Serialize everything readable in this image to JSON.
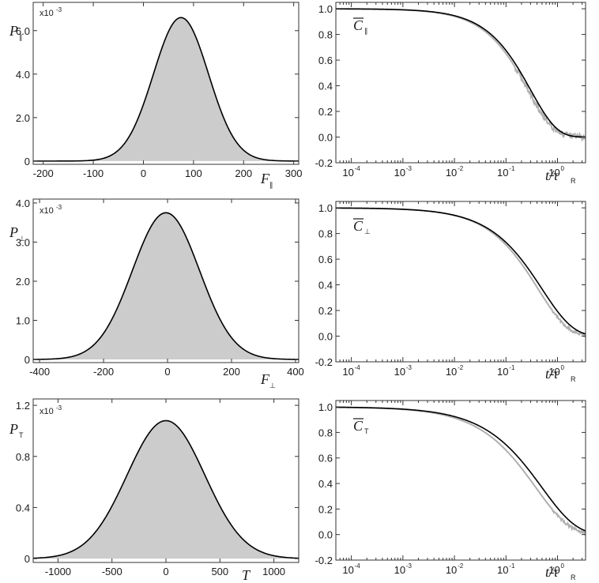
{
  "colors": {
    "histogram_fill": "#cccccc",
    "fit_line": "#000000",
    "data_line": "#b0b0b0",
    "frame": "#333333"
  },
  "chart_data": [
    {
      "id": "p_par",
      "type": "area",
      "ylabel": {
        "main": "P",
        "sub": "∥"
      },
      "xlabel": {
        "main": "F",
        "sub": "∥"
      },
      "multiplier": {
        "base": "x10",
        "exp": "-3"
      },
      "xlim": [
        -220,
        310
      ],
      "ylim": [
        -0.15,
        7.3
      ],
      "xticks": [
        -200,
        -100,
        0,
        100,
        200,
        300
      ],
      "yticks": [
        0,
        2.0,
        4.0,
        6.0
      ],
      "ytick_labels": [
        "0",
        "2.0",
        "4.0",
        "6.0"
      ],
      "distribution": {
        "mean": 75,
        "sd": 55,
        "peak": 6.6
      },
      "series": [
        {
          "kind": "histogram"
        },
        {
          "kind": "gaussian fit"
        }
      ]
    },
    {
      "id": "c_par",
      "type": "line",
      "ylabel": {
        "main": "C",
        "sub": "∥"
      },
      "xlabel": {
        "main": "t/τ",
        "sub": "R"
      },
      "xscale": "log",
      "xlim": [
        5e-05,
        3.5
      ],
      "ylim": [
        -0.2,
        1.05
      ],
      "xticks_exponents": [
        -4,
        -3,
        -2,
        -1,
        0
      ],
      "yticks": [
        -0.2,
        0.0,
        0.2,
        0.4,
        0.6,
        0.8,
        1.0
      ],
      "ytick_labels": [
        "-0.2",
        "0.0",
        "0.2",
        "0.4",
        "0.6",
        "0.8",
        "1.0"
      ],
      "fit": {
        "tau": 0.3,
        "beta": 0.85
      },
      "data": {
        "tau": 0.27,
        "beta": 0.85,
        "noise": 0.025,
        "noise_start": 0.15
      },
      "series": [
        {
          "kind": "simulation"
        },
        {
          "kind": "fit"
        }
      ]
    },
    {
      "id": "p_perp",
      "type": "area",
      "ylabel": {
        "main": "P",
        "sub": "⊥"
      },
      "xlabel": {
        "main": "F",
        "sub": "⊥"
      },
      "multiplier": {
        "base": "x10",
        "exp": "-3"
      },
      "xlim": [
        -420,
        410
      ],
      "ylim": [
        -0.08,
        4.1
      ],
      "xticks": [
        -400,
        -200,
        0,
        200,
        400
      ],
      "yticks": [
        0,
        1.0,
        2.0,
        3.0,
        4.0
      ],
      "ytick_labels": [
        "0",
        "1.0",
        "2.0",
        "3.0",
        "4.0"
      ],
      "distribution": {
        "mean": -5,
        "sd": 105,
        "peak": 3.75
      },
      "series": [
        {
          "kind": "histogram"
        },
        {
          "kind": "gaussian fit"
        }
      ]
    },
    {
      "id": "c_perp",
      "type": "line",
      "ylabel": {
        "main": "C",
        "sub": "⊥"
      },
      "xlabel": {
        "main": "t/τ",
        "sub": "R"
      },
      "xscale": "log",
      "xlim": [
        5e-05,
        3.5
      ],
      "ylim": [
        -0.2,
        1.05
      ],
      "xticks_exponents": [
        -4,
        -3,
        -2,
        -1,
        0
      ],
      "yticks": [
        -0.2,
        0.0,
        0.2,
        0.4,
        0.6,
        0.8,
        1.0
      ],
      "ytick_labels": [
        "-0.2",
        "0.0",
        "0.2",
        "0.4",
        "0.6",
        "0.8",
        "1.0"
      ],
      "fit": {
        "tau": 0.5,
        "beta": 0.72
      },
      "data": {
        "tau": 0.42,
        "beta": 0.75,
        "noise": 0.012,
        "noise_start": 0.8
      },
      "series": [
        {
          "kind": "simulation"
        },
        {
          "kind": "fit"
        }
      ]
    },
    {
      "id": "p_t",
      "type": "area",
      "ylabel": {
        "main": "P",
        "sub": "T"
      },
      "xlabel": {
        "main": "T",
        "sub": ""
      },
      "multiplier": {
        "base": "x10",
        "exp": "-3"
      },
      "xlim": [
        -1230,
        1230
      ],
      "ylim": [
        -0.03,
        1.25
      ],
      "xticks": [
        -1000,
        -500,
        0,
        500,
        1000
      ],
      "yticks": [
        0,
        0.4,
        0.8,
        1.2
      ],
      "ytick_labels": [
        "0",
        "0.4",
        "0.8",
        "1.2"
      ],
      "distribution": {
        "mean": 0,
        "sd": 360,
        "peak": 1.08
      },
      "series": [
        {
          "kind": "histogram"
        },
        {
          "kind": "gaussian fit"
        }
      ]
    },
    {
      "id": "c_t",
      "type": "line",
      "ylabel": {
        "main": "C",
        "sub": "T"
      },
      "xlabel": {
        "main": "t/τ",
        "sub": "R"
      },
      "xscale": "log",
      "xlim": [
        5e-05,
        3.5
      ],
      "ylim": [
        -0.2,
        1.05
      ],
      "xticks_exponents": [
        -4,
        -3,
        -2,
        -1,
        0
      ],
      "yticks": [
        -0.2,
        0.0,
        0.2,
        0.4,
        0.6,
        0.8,
        1.0
      ],
      "ytick_labels": [
        "-0.2",
        "0.0",
        "0.2",
        "0.4",
        "0.6",
        "0.8",
        "1.0"
      ],
      "fit": {
        "tau": 0.5,
        "beta": 0.65
      },
      "data": {
        "tau": 0.38,
        "beta": 0.66,
        "noise": 0.012,
        "noise_start": 0.8
      },
      "series": [
        {
          "kind": "simulation"
        },
        {
          "kind": "fit"
        }
      ]
    }
  ]
}
